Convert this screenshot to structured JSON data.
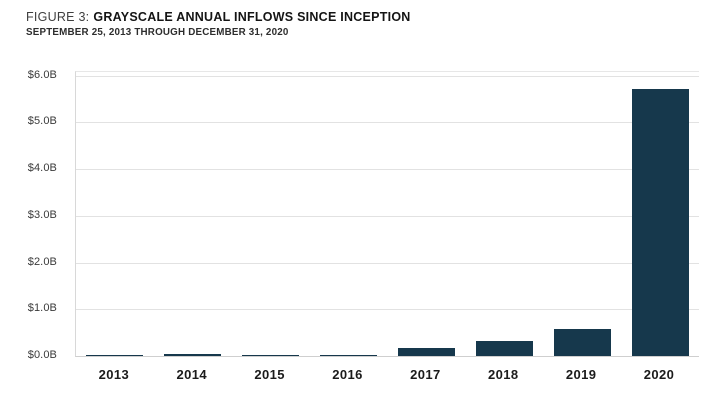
{
  "header": {
    "figure_label": "FIGURE 3:",
    "title": "GRAYSCALE ANNUAL INFLOWS SINCE INCEPTION",
    "subtitle": "SEPTEMBER 25, 2013 THROUGH DECEMBER 31, 2020"
  },
  "chart_data": {
    "type": "bar",
    "title": "Grayscale Annual Inflows Since Inception",
    "subtitle": "September 25, 2013 through December 31, 2020",
    "unit": "USD billions",
    "categories": [
      "2013",
      "2014",
      "2015",
      "2016",
      "2017",
      "2018",
      "2019",
      "2020"
    ],
    "values": [
      0.02,
      0.04,
      0.03,
      0.02,
      0.18,
      0.32,
      0.57,
      5.72
    ],
    "xlabel": "",
    "ylabel": "",
    "ylim": [
      0,
      6.0
    ],
    "grid": true,
    "legend": "none",
    "yticks": [
      {
        "value": 6,
        "label": "$6.0B"
      },
      {
        "value": 5,
        "label": "$5.0B"
      },
      {
        "value": 4,
        "label": "$4.0B"
      },
      {
        "value": 3,
        "label": "$3.0B"
      },
      {
        "value": 2,
        "label": "$2.0B"
      },
      {
        "value": 1,
        "label": "$1.0B"
      },
      {
        "value": 0,
        "label": "$0.0B"
      }
    ],
    "colors": {
      "bar": "#16384c",
      "gridline": "#e2e2e2",
      "axis_line": "#cfcfcf",
      "y_tick_text": "#3a3a3a",
      "x_tick_text": "#1b1b1b",
      "background": "#ffffff"
    }
  }
}
